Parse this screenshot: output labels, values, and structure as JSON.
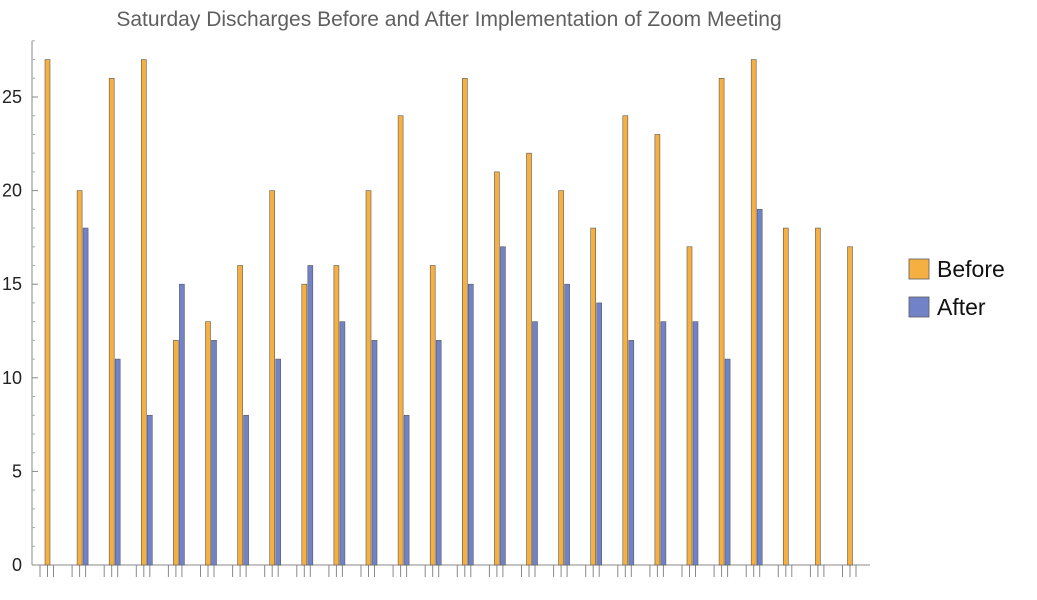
{
  "chart_data": {
    "type": "bar",
    "title": "Saturday Discharges Before and After Implementation of Zoom Meeting",
    "xlabel": "",
    "ylabel": "",
    "ylim": [
      0,
      28
    ],
    "yticks": [
      0,
      5,
      10,
      15,
      20,
      25
    ],
    "grid": false,
    "legend_position": "right",
    "series": [
      {
        "name": "Before",
        "color": "#f5b041",
        "values": [
          27,
          20,
          26,
          27,
          12,
          13,
          16,
          20,
          15,
          16,
          20,
          24,
          16,
          26,
          21,
          22,
          20,
          18,
          24,
          23,
          17,
          26,
          27,
          18,
          18,
          17
        ]
      },
      {
        "name": "After",
        "color": "#7282c8",
        "values": [
          null,
          18,
          11,
          8,
          15,
          12,
          8,
          11,
          16,
          13,
          12,
          8,
          12,
          15,
          17,
          13,
          15,
          14,
          12,
          13,
          13,
          11,
          19,
          null,
          null,
          null
        ]
      }
    ]
  }
}
